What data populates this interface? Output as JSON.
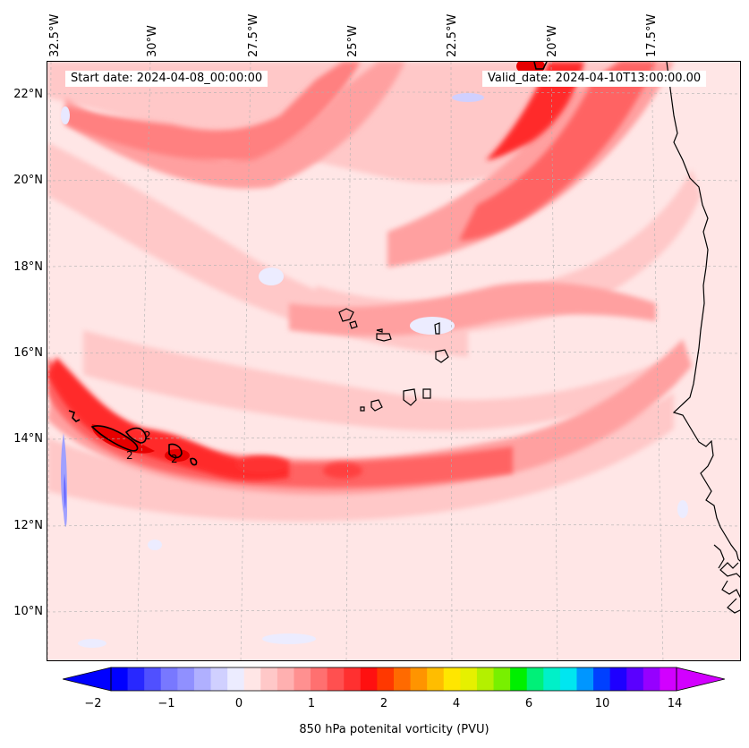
{
  "map": {
    "start_date": "Start date: 2024-04-08_00:00:00",
    "valid_date": "Valid_date: 2024-04-10T13:00:00.00",
    "longitude_labels": [
      "32.5°W",
      "30°W",
      "27.5°W",
      "25°W",
      "22.5°W",
      "20°W",
      "17.5°W"
    ],
    "latitude_labels": [
      "22°N",
      "20°N",
      "18°N",
      "16°N",
      "14°N",
      "12°N",
      "10°N"
    ],
    "contour_labels": [
      "2",
      "2",
      "2"
    ],
    "field_colors": {
      "background": "#ffe6e6",
      "light": "#ffc8c8",
      "medium": "#ffa0a0",
      "strong": "#ff6464",
      "intense": "#ff2a2a",
      "peak": "#e60000",
      "negative_light": "#e8e8ff",
      "negative": "#a0a0ff",
      "negative_strong": "#6464ff",
      "coastline": "#000000"
    }
  },
  "colorbar": {
    "label": "850 hPa potenital vorticity (PVU)",
    "tick_labels": [
      "−2",
      "−1",
      "0",
      "1",
      "2",
      "4",
      "6",
      "10",
      "14"
    ],
    "colors": [
      "#0000ff",
      "#2828ff",
      "#5050ff",
      "#7878ff",
      "#9090ff",
      "#b0b0ff",
      "#d0d0ff",
      "#ececff",
      "#ffe6e6",
      "#ffc8c8",
      "#ffb0b0",
      "#ff9090",
      "#ff7070",
      "#ff5050",
      "#ff3030",
      "#ff1010",
      "#ff3800",
      "#ff6a00",
      "#ff9400",
      "#ffbd00",
      "#ffe600",
      "#e6f000",
      "#b4f000",
      "#78f000",
      "#00f000",
      "#00f078",
      "#00f0c8",
      "#00e6f0",
      "#0096ff",
      "#0040ff",
      "#1e00ff",
      "#5a00ff",
      "#9600ff",
      "#d200ff"
    ]
  }
}
